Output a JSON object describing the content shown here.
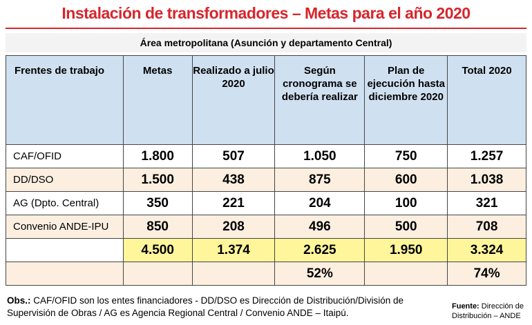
{
  "header": {
    "title": "Instalación de transformadores – Metas para el año 2020",
    "subtitle": "Área metropolitana (Asunción y departamento Central)"
  },
  "table": {
    "columns": [
      "Frentes de trabajo",
      "Metas",
      "Realizado a julio 2020",
      "Según cronograma se debería realizar",
      "Plan de ejecución hasta diciembre 2020",
      "Total 2020"
    ],
    "rows": [
      [
        "CAF/OFID",
        "1.800",
        "507",
        "1.050",
        "750",
        "1.257"
      ],
      [
        "DD/DSO",
        "1.500",
        "438",
        "875",
        "600",
        "1.038"
      ],
      [
        "AG (Dpto. Central)",
        "350",
        "221",
        "204",
        "100",
        "321"
      ],
      [
        "Convenio ANDE-IPU",
        "850",
        "208",
        "496",
        "500",
        "708"
      ]
    ],
    "totals": [
      null,
      "4.500",
      "1.374",
      "2.625",
      "1.950",
      "3.324"
    ],
    "percentages": [
      null,
      null,
      null,
      "52%",
      null,
      "74%"
    ]
  },
  "notes": {
    "obs_label": "Obs.:",
    "obs_text": "CAF/OFID son los entes financiadores -  DD/DSO es Dirección de Distribución/División de Supervisión de Obras / AG es Agencia Regional Central / Convenio ANDE – Itaipú.",
    "source_label": "Fuente:",
    "source_text": "Dirección de Distribución – ANDE"
  }
}
